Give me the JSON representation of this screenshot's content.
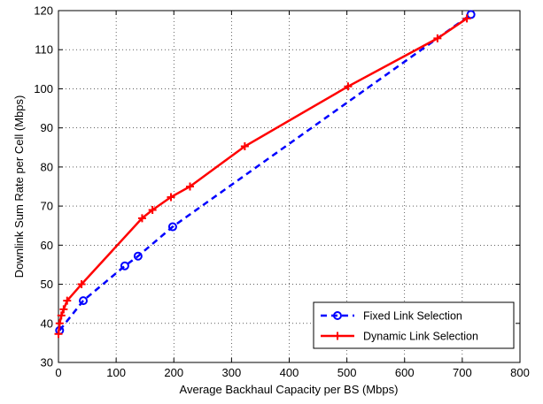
{
  "chart_data": {
    "type": "line",
    "title": "",
    "xlabel": "Average Backhaul Capacity per BS (Mbps)",
    "ylabel": "Downlink Sum Rate per Cell (Mbps)",
    "xlim": [
      0,
      800
    ],
    "ylim": [
      30,
      120
    ],
    "x_ticks": [
      0,
      100,
      200,
      300,
      400,
      500,
      600,
      700,
      800
    ],
    "y_ticks": [
      30,
      40,
      50,
      60,
      70,
      80,
      90,
      100,
      110,
      120
    ],
    "grid": true,
    "legend_position": "bottom-right",
    "series": [
      {
        "name": "Fixed Link Selection",
        "color": "#0000ff",
        "line_style": "dashed",
        "marker": "circle",
        "x": [
          2,
          43,
          115,
          138,
          198,
          715
        ],
        "y": [
          38.2,
          45.8,
          54.7,
          57.2,
          64.7,
          119.0
        ]
      },
      {
        "name": "Dynamic Link Selection",
        "color": "#ff0000",
        "line_style": "solid",
        "marker": "plus",
        "x": [
          0,
          2,
          5,
          9,
          15,
          40,
          145,
          163,
          195,
          228,
          323,
          502,
          657,
          708
        ],
        "y": [
          37.3,
          40.0,
          42.0,
          43.6,
          45.8,
          50.0,
          66.9,
          69.0,
          72.3,
          75.0,
          85.3,
          100.6,
          112.9,
          118.0
        ]
      }
    ]
  }
}
